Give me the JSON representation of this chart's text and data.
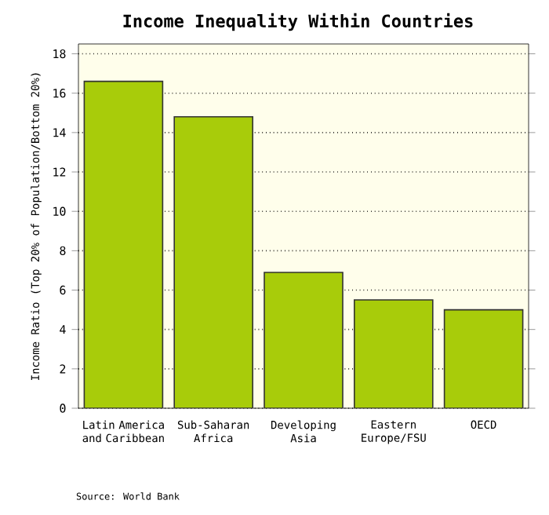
{
  "chart_data": {
    "type": "bar",
    "title": "Income Inequality Within Countries",
    "ylabel": "Income Ratio (Top 20% of Population/Bottom 20%)",
    "categories": [
      "Latin America and Caribbean",
      "Sub-Saharan Africa",
      "Developing Asia",
      "Eastern Europe/FSU",
      "OECD"
    ],
    "values": [
      16.6,
      14.8,
      6.9,
      5.5,
      5.0
    ],
    "color": "#a8cc0a",
    "ylim": [
      0,
      18.5
    ],
    "yticks": [
      0,
      2,
      4,
      6,
      8,
      10,
      12,
      14,
      16,
      18
    ],
    "grid": "y",
    "annotations": [
      "Source: World Bank"
    ]
  }
}
